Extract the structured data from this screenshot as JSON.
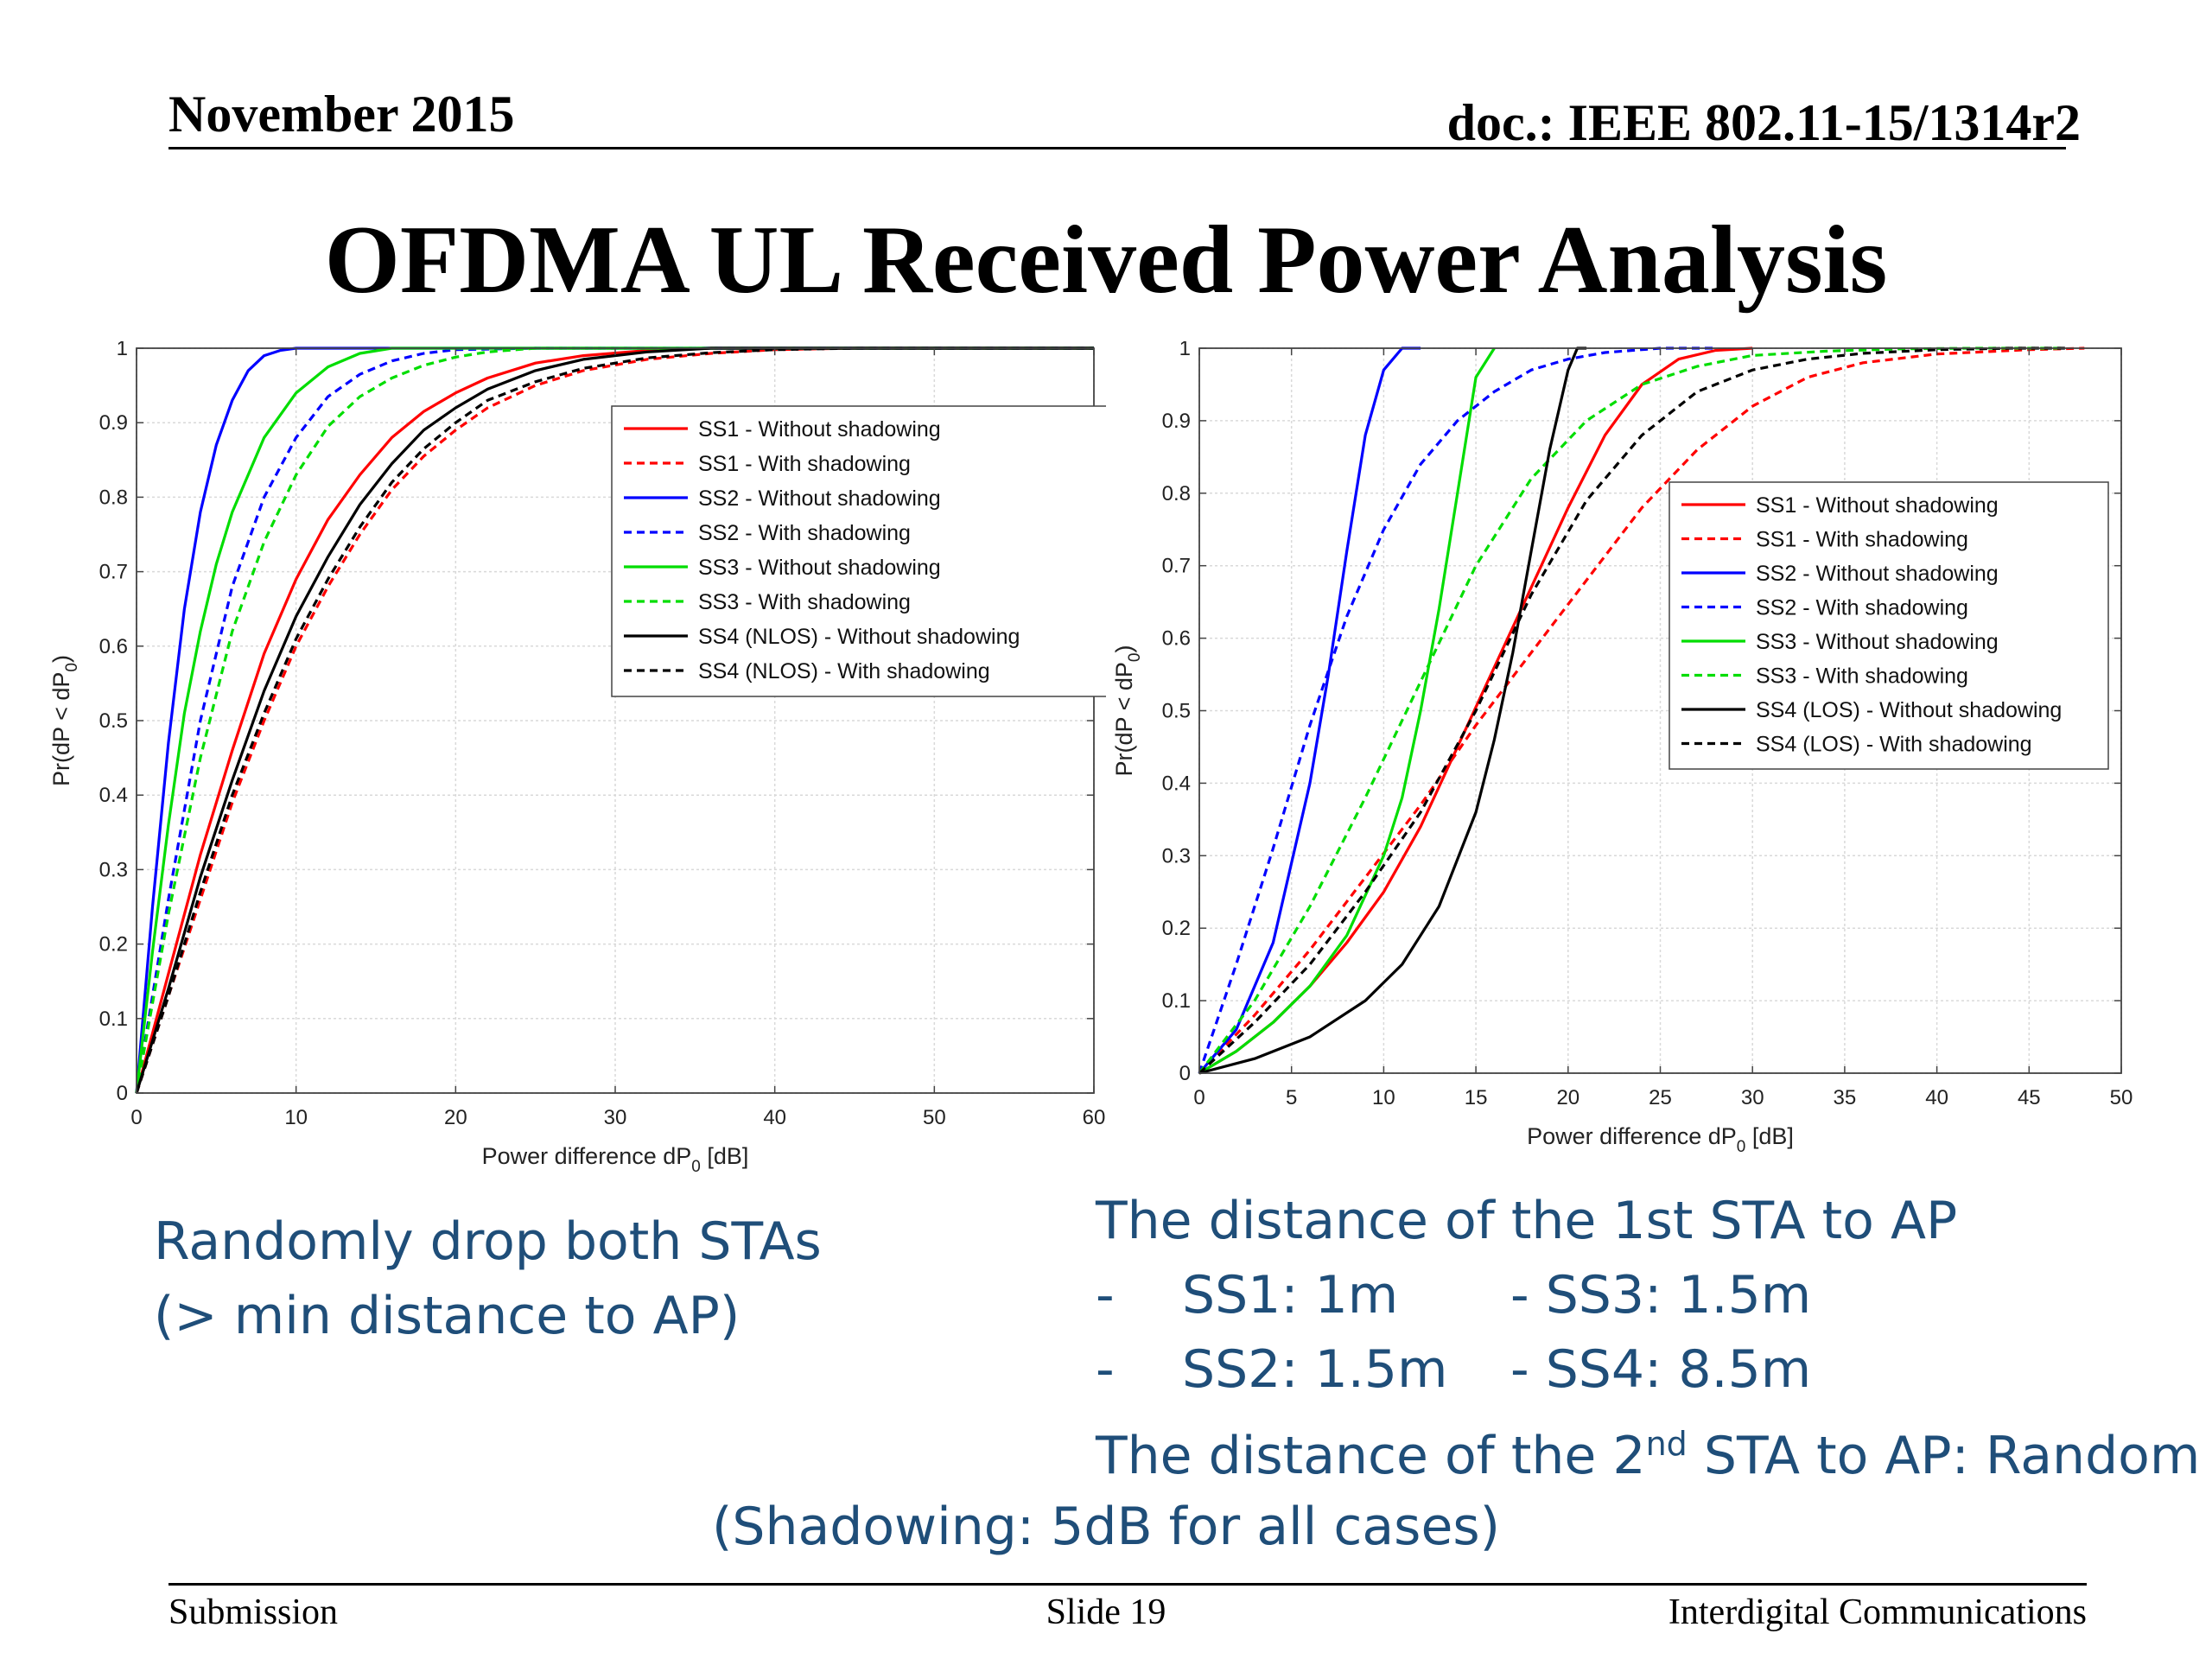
{
  "header": {
    "date": "November 2015",
    "doc": "doc.: IEEE 802.11-15/1314r2"
  },
  "title": "OFDMA UL Received Power Analysis",
  "chart_data": [
    {
      "type": "line",
      "xlabel_main": "Power difference dP",
      "xlabel_sub": "0",
      "xlabel_tail": " [dB]",
      "ylabel_main": "Pr(dP < dP",
      "ylabel_sub": "0",
      "ylabel_tail": ")",
      "xlim": [
        0,
        60
      ],
      "ylim": [
        0,
        1
      ],
      "xticks": [
        0,
        10,
        20,
        30,
        40,
        50,
        60
      ],
      "yticks": [
        0,
        0.1,
        0.2,
        0.3,
        0.4,
        0.5,
        0.6,
        0.7,
        0.8,
        0.9,
        1
      ],
      "grid": true,
      "legend": "top-right",
      "series": [
        {
          "name": "SS1 - Without shadowing",
          "color": "#ff0000",
          "dash": false,
          "x": [
            0,
            2,
            4,
            6,
            8,
            10,
            12,
            14,
            16,
            18,
            20,
            22,
            25,
            28,
            32,
            36,
            40,
            60
          ],
          "y": [
            0,
            0.16,
            0.32,
            0.46,
            0.59,
            0.69,
            0.77,
            0.83,
            0.88,
            0.915,
            0.94,
            0.96,
            0.98,
            0.99,
            0.997,
            1,
            1,
            1
          ]
        },
        {
          "name": "SS1 - With shadowing",
          "color": "#ff0000",
          "dash": true,
          "x": [
            0,
            2,
            4,
            6,
            8,
            10,
            12,
            14,
            16,
            18,
            20,
            22,
            25,
            28,
            32,
            36,
            40,
            45,
            60
          ],
          "y": [
            0,
            0.13,
            0.26,
            0.39,
            0.5,
            0.6,
            0.68,
            0.75,
            0.81,
            0.855,
            0.89,
            0.92,
            0.95,
            0.97,
            0.985,
            0.993,
            0.998,
            1,
            1
          ]
        },
        {
          "name": "SS2 - Without shadowing",
          "color": "#0000ff",
          "dash": false,
          "x": [
            0,
            1,
            2,
            3,
            4,
            5,
            6,
            7,
            8,
            9,
            10,
            11,
            60
          ],
          "y": [
            0,
            0.25,
            0.47,
            0.65,
            0.78,
            0.87,
            0.93,
            0.97,
            0.99,
            0.997,
            1,
            1,
            1
          ]
        },
        {
          "name": "SS2 - With shadowing",
          "color": "#0000ff",
          "dash": true,
          "x": [
            0,
            2,
            4,
            6,
            8,
            10,
            12,
            14,
            16,
            18,
            20,
            25,
            60
          ],
          "y": [
            0,
            0.26,
            0.5,
            0.68,
            0.8,
            0.88,
            0.935,
            0.965,
            0.983,
            0.993,
            0.998,
            1,
            1
          ]
        },
        {
          "name": "SS3 - Without shadowing",
          "color": "#00dd00",
          "dash": false,
          "x": [
            0,
            1,
            2,
            3,
            4,
            5,
            6,
            8,
            10,
            12,
            14,
            16,
            60
          ],
          "y": [
            0,
            0.19,
            0.36,
            0.51,
            0.62,
            0.71,
            0.78,
            0.88,
            0.94,
            0.975,
            0.993,
            1,
            1
          ]
        },
        {
          "name": "SS3 - With shadowing",
          "color": "#00dd00",
          "dash": true,
          "x": [
            0,
            2,
            4,
            6,
            8,
            10,
            12,
            14,
            16,
            18,
            20,
            22,
            25,
            60
          ],
          "y": [
            0,
            0.24,
            0.45,
            0.62,
            0.74,
            0.83,
            0.895,
            0.935,
            0.96,
            0.977,
            0.988,
            0.995,
            1,
            1
          ]
        },
        {
          "name": "SS4 (NLOS) - Without shadowing",
          "color": "#000000",
          "dash": false,
          "x": [
            0,
            2,
            4,
            6,
            8,
            10,
            12,
            14,
            16,
            18,
            20,
            22,
            25,
            28,
            32,
            36,
            40,
            60
          ],
          "y": [
            0,
            0.14,
            0.29,
            0.42,
            0.54,
            0.64,
            0.72,
            0.79,
            0.845,
            0.89,
            0.92,
            0.945,
            0.97,
            0.985,
            0.995,
            1,
            1,
            1
          ]
        },
        {
          "name": "SS4 (NLOS) - With shadowing",
          "color": "#000000",
          "dash": true,
          "x": [
            0,
            2,
            4,
            6,
            8,
            10,
            12,
            14,
            16,
            18,
            20,
            22,
            25,
            28,
            32,
            36,
            40,
            45,
            50,
            60
          ],
          "y": [
            0,
            0.13,
            0.27,
            0.4,
            0.51,
            0.61,
            0.69,
            0.76,
            0.82,
            0.865,
            0.9,
            0.93,
            0.955,
            0.973,
            0.987,
            0.994,
            0.998,
            1,
            1,
            1
          ]
        }
      ]
    },
    {
      "type": "line",
      "xlabel_main": "Power difference dP",
      "xlabel_sub": "0",
      "xlabel_tail": " [dB]",
      "ylabel_main": "Pr(dP < dP",
      "ylabel_sub": "0",
      "ylabel_tail": ")",
      "xlim": [
        0,
        50
      ],
      "ylim": [
        0,
        1
      ],
      "xticks": [
        0,
        5,
        10,
        15,
        20,
        25,
        30,
        35,
        40,
        45,
        50
      ],
      "yticks": [
        0,
        0.1,
        0.2,
        0.3,
        0.4,
        0.5,
        0.6,
        0.7,
        0.8,
        0.9,
        1
      ],
      "grid": true,
      "legend": "top-right",
      "series": [
        {
          "name": "SS1 - Without shadowing",
          "color": "#ff0000",
          "dash": false,
          "x": [
            0,
            2,
            4,
            6,
            8,
            10,
            12,
            14,
            16,
            18,
            20,
            22,
            24,
            26,
            28,
            30
          ],
          "y": [
            0,
            0.03,
            0.07,
            0.12,
            0.18,
            0.25,
            0.34,
            0.45,
            0.56,
            0.67,
            0.78,
            0.88,
            0.95,
            0.985,
            0.997,
            1
          ]
        },
        {
          "name": "SS1 - With shadowing",
          "color": "#ff0000",
          "dash": true,
          "x": [
            0,
            3,
            6,
            9,
            12,
            15,
            18,
            21,
            24,
            27,
            30,
            33,
            36,
            40,
            45,
            48
          ],
          "y": [
            0,
            0.08,
            0.17,
            0.27,
            0.37,
            0.48,
            0.58,
            0.68,
            0.78,
            0.86,
            0.92,
            0.96,
            0.98,
            0.992,
            0.998,
            1
          ]
        },
        {
          "name": "SS2 - Without shadowing",
          "color": "#0000ff",
          "dash": false,
          "x": [
            0,
            2,
            4,
            6,
            7,
            8,
            9,
            10,
            11,
            12
          ],
          "y": [
            0,
            0.06,
            0.18,
            0.4,
            0.55,
            0.72,
            0.88,
            0.97,
            1,
            1
          ]
        },
        {
          "name": "SS2 - With shadowing",
          "color": "#0000ff",
          "dash": true,
          "x": [
            0,
            2,
            4,
            6,
            8,
            10,
            12,
            14,
            16,
            18,
            20,
            22,
            25,
            28
          ],
          "y": [
            0,
            0.15,
            0.31,
            0.48,
            0.63,
            0.75,
            0.84,
            0.9,
            0.94,
            0.97,
            0.985,
            0.994,
            1,
            1
          ]
        },
        {
          "name": "SS3 - Without shadowing",
          "color": "#00dd00",
          "dash": false,
          "x": [
            0,
            2,
            4,
            6,
            8,
            10,
            11,
            12,
            13,
            14,
            15,
            16
          ],
          "y": [
            0,
            0.03,
            0.07,
            0.12,
            0.19,
            0.3,
            0.38,
            0.5,
            0.64,
            0.8,
            0.96,
            1
          ]
        },
        {
          "name": "SS3 - With shadowing",
          "color": "#00dd00",
          "dash": true,
          "x": [
            0,
            3,
            6,
            9,
            12,
            15,
            18,
            21,
            24,
            27,
            30,
            34,
            38,
            42,
            47
          ],
          "y": [
            0,
            0.1,
            0.23,
            0.38,
            0.54,
            0.7,
            0.82,
            0.9,
            0.95,
            0.975,
            0.99,
            0.996,
            0.999,
            1,
            1
          ]
        },
        {
          "name": "SS4 (LOS) - Without shadowing",
          "color": "#000000",
          "dash": false,
          "x": [
            0,
            3,
            6,
            9,
            11,
            13,
            15,
            16,
            17,
            18,
            19,
            20,
            20.5,
            21
          ],
          "y": [
            0,
            0.02,
            0.05,
            0.1,
            0.15,
            0.23,
            0.36,
            0.46,
            0.58,
            0.72,
            0.86,
            0.97,
            1,
            1
          ]
        },
        {
          "name": "SS4 (LOS) - With shadowing",
          "color": "#000000",
          "dash": true,
          "x": [
            0,
            3,
            6,
            9,
            12,
            15,
            18,
            21,
            24,
            27,
            30,
            33,
            36,
            40,
            44,
            47
          ],
          "y": [
            0,
            0.07,
            0.15,
            0.25,
            0.36,
            0.5,
            0.66,
            0.79,
            0.88,
            0.94,
            0.97,
            0.985,
            0.993,
            0.998,
            1,
            1
          ]
        }
      ]
    }
  ],
  "left_text": [
    "Randomly drop both STAs",
    "(> min distance to AP)"
  ],
  "right_text": {
    "line1": "The distance of the 1st STA to AP",
    "dash": "-",
    "ss1": "SS1: 1m",
    "ss3": "- SS3: 1.5m",
    "ss2": "SS2: 1.5m",
    "ss4": "- SS4: 8.5m",
    "line4_a": "The distance of the 2",
    "line4_sup": "nd",
    "line4_b": " STA to AP: Random"
  },
  "shadowing_note": "(Shadowing: 5dB for all cases)",
  "footer": {
    "left": "Submission",
    "center": "Slide 19",
    "right": "Interdigital Communications"
  }
}
